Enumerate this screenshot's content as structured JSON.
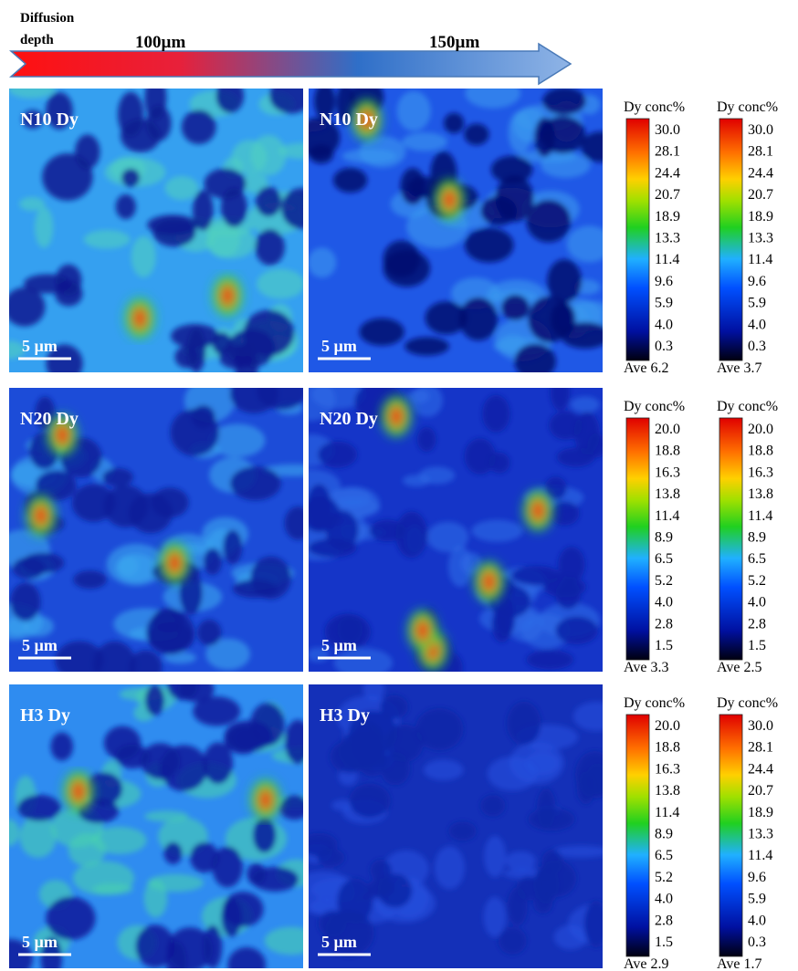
{
  "header": {
    "title": [
      "Diffusion",
      "depth"
    ],
    "depth_labels": [
      "100µm",
      "150µm"
    ]
  },
  "rows": [
    {
      "maps": [
        {
          "label": "N10 Dy",
          "scale_bar": "5 µm"
        },
        {
          "label": "N10 Dy",
          "scale_bar": "5 µm"
        }
      ],
      "colorbars": [
        {
          "title": "Dy conc%",
          "ticks": [
            "30.0",
            "28.1",
            "24.4",
            "20.7",
            "18.9",
            "13.3",
            "11.4",
            "9.6",
            "5.9",
            "4.0",
            "0.3"
          ],
          "average": "Ave 6.2"
        },
        {
          "title": "Dy conc%",
          "ticks": [
            "30.0",
            "28.1",
            "24.4",
            "20.7",
            "18.9",
            "13.3",
            "11.4",
            "9.6",
            "5.9",
            "4.0",
            "0.3"
          ],
          "average": "Ave 3.7"
        }
      ]
    },
    {
      "maps": [
        {
          "label": "N20 Dy",
          "scale_bar": "5 µm"
        },
        {
          "label": "N20 Dy",
          "scale_bar": "5 µm"
        }
      ],
      "colorbars": [
        {
          "title": "Dy conc%",
          "ticks": [
            "20.0",
            "18.8",
            "16.3",
            "13.8",
            "11.4",
            "8.9",
            "6.5",
            "5.2",
            "4.0",
            "2.8",
            "1.5"
          ],
          "average": "Ave 3.3"
        },
        {
          "title": "Dy conc%",
          "ticks": [
            "20.0",
            "18.8",
            "16.3",
            "13.8",
            "11.4",
            "8.9",
            "6.5",
            "5.2",
            "4.0",
            "2.8",
            "1.5"
          ],
          "average": "Ave 2.5"
        }
      ]
    },
    {
      "maps": [
        {
          "label": "H3 Dy",
          "scale_bar": "5 µm"
        },
        {
          "label": "H3 Dy",
          "scale_bar": "5 µm"
        }
      ],
      "colorbars": [
        {
          "title": "Dy conc%",
          "ticks": [
            "20.0",
            "18.8",
            "16.3",
            "13.8",
            "11.4",
            "8.9",
            "6.5",
            "5.2",
            "4.0",
            "2.8",
            "1.5"
          ],
          "average": "Ave 2.9"
        },
        {
          "title": "Dy conc%",
          "ticks": [
            "30.0",
            "28.1",
            "24.4",
            "20.7",
            "18.9",
            "13.3",
            "11.4",
            "9.6",
            "5.9",
            "4.0",
            "0.3"
          ],
          "average": "Ave 1.7"
        }
      ]
    }
  ]
}
